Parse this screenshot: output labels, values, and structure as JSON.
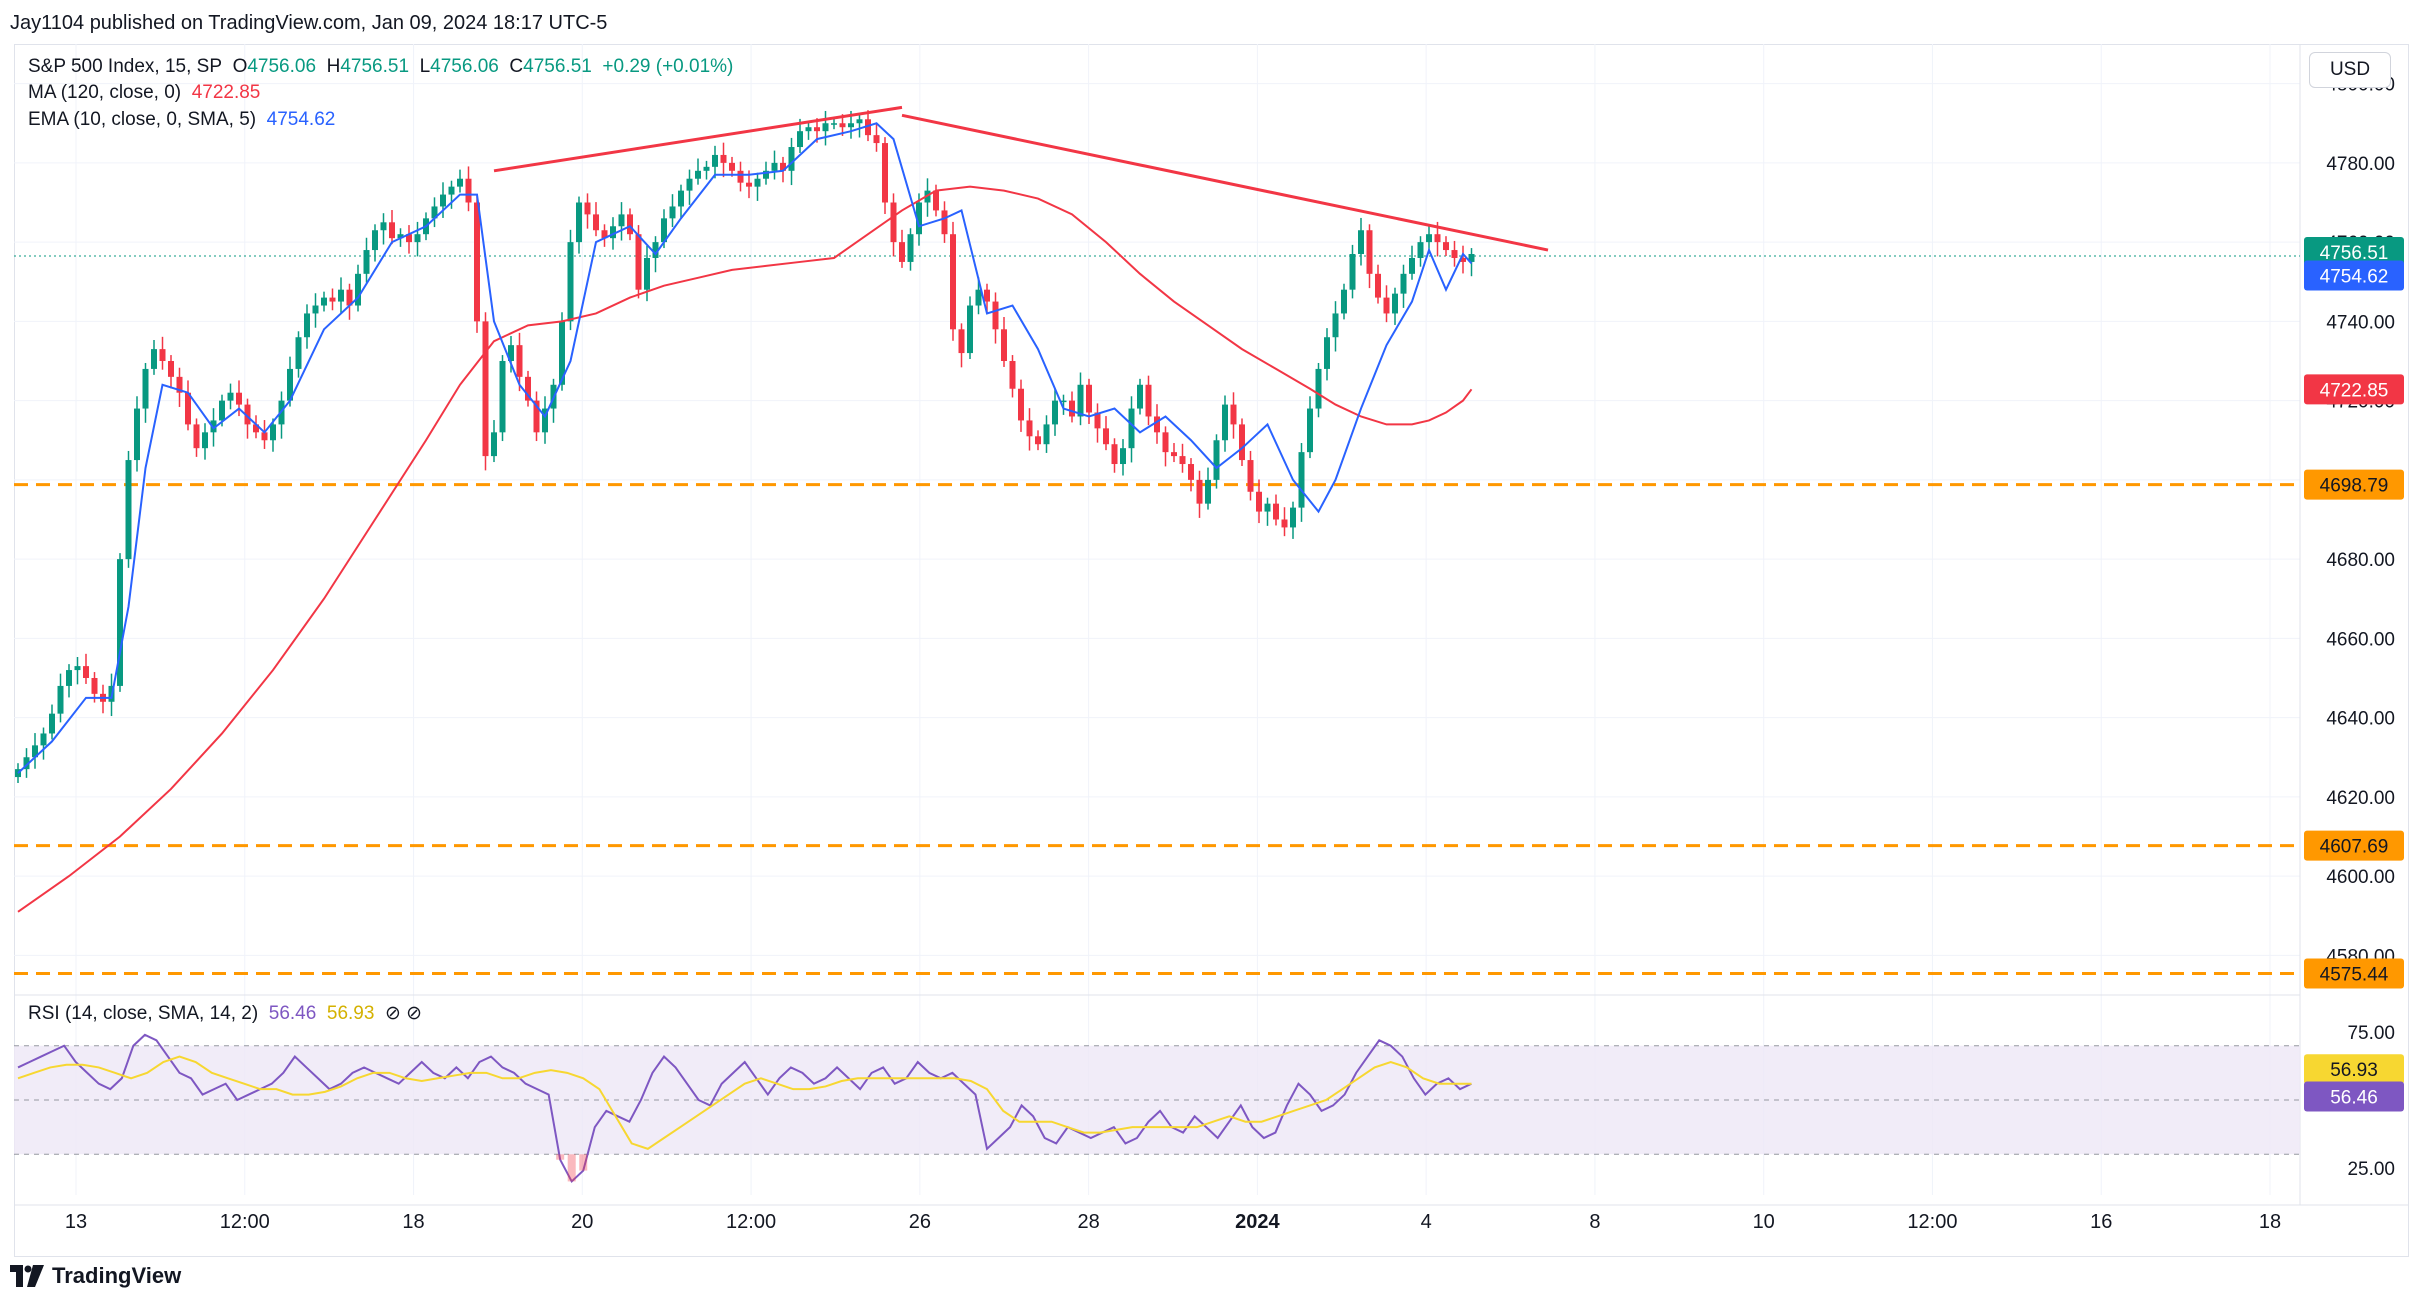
{
  "header": {
    "published": "Jay1104 published on TradingView.com, Jan 09, 2024 18:17 UTC-5"
  },
  "legend": {
    "symbol": "S&P 500 Index, 15, SP",
    "o_label": "O",
    "o_value": "4756.06",
    "h_label": "H",
    "h_value": "4756.51",
    "l_label": "L",
    "l_value": "4756.06",
    "c_label": "C",
    "c_value": "4756.51",
    "change": "+0.29 (+0.01%)",
    "ma_label": "MA (120, close, 0)",
    "ma_value": "4722.85",
    "ema_label": "EMA (10, close, 0, SMA, 5)",
    "ema_value": "4754.62",
    "rsi_label": "RSI (14, close, SMA, 14, 2)",
    "rsi_value": "56.46",
    "rsi_ma_value": "56.93",
    "rsi_icons": "⊘  ⊘"
  },
  "currency": "USD",
  "footer": {
    "brand": "TradingView",
    "logo_icon": "tradingview-logo-icon"
  },
  "colors": {
    "up": "#089981",
    "down": "#f23645",
    "ma": "#f23645",
    "ema": "#2962ff",
    "trend": "#f23645",
    "support": "#ff9800",
    "rsi": "#7e57c2",
    "rsi_ma": "#f7d731",
    "rsi_band": "#ede7f6",
    "grid": "#f0f3fa",
    "last_price": "#089981"
  },
  "chart_data": {
    "type": "candlestick",
    "title": "S&P 500 Index, 15, SP",
    "price_axis": {
      "ylim": [
        4570,
        4810
      ],
      "ticks": [
        4580,
        4600,
        4620,
        4640,
        4660,
        4680,
        4700,
        4720,
        4740,
        4760,
        4780,
        4800
      ],
      "tick_labels": [
        "4580.00",
        "4600.00",
        "4620.00",
        "4640.00",
        "4660.00",
        "4680.00",
        "4700.00",
        "4720.00",
        "4740.00",
        "4760.00",
        "4780.00",
        "4800.00"
      ]
    },
    "time_axis": {
      "labels": [
        "13",
        "12:00",
        "18",
        "20",
        "12:00",
        "26",
        "28",
        "2024",
        "4",
        "8",
        "10",
        "12:00",
        "16",
        "18"
      ],
      "bold_label": "2024"
    },
    "series": [
      {
        "name": "S&P 500 Index",
        "style": "candles",
        "closes": [
          4627,
          4630,
          4633,
          4636,
          4641,
          4648,
          4652,
          4653,
          4650,
          4646,
          4644,
          4648,
          4680,
          4705,
          4718,
          4728,
          4733,
          4730,
          4726,
          4722,
          4714,
          4708,
          4712,
          4715,
          4720,
          4722,
          4719,
          4714,
          4712,
          4710,
          4714,
          4720,
          4728,
          4736,
          4742,
          4744,
          4746,
          4745,
          4748,
          4744,
          4752,
          4758,
          4763,
          4765,
          4761,
          4762,
          4760,
          4762,
          4766,
          4769,
          4772,
          4774,
          4776,
          4770,
          4740,
          4706,
          4712,
          4730,
          4734,
          4726,
          4720,
          4712,
          4718,
          4724,
          4740,
          4760,
          4770,
          4767,
          4763,
          4761,
          4764,
          4767,
          4762,
          4748,
          4756,
          4760,
          4766,
          4769,
          4773,
          4776,
          4778,
          4779,
          4782,
          4780,
          4778,
          4775,
          4774,
          4776,
          4778,
          4780,
          4778,
          4784,
          4788,
          4789,
          4788,
          4790,
          4790,
          4789,
          4790,
          4791,
          4787,
          4785,
          4770,
          4760,
          4755,
          4762,
          4770,
          4773,
          4768,
          4762,
          4738,
          4732,
          4744,
          4748,
          4745,
          4738,
          4730,
          4723,
          4715,
          4711,
          4709,
          4714,
          4720,
          4720,
          4716,
          4724,
          4717,
          4713,
          4709,
          4704,
          4708,
          4718,
          4724,
          4716,
          4712,
          4707,
          4706,
          4704,
          4700,
          4694,
          4700,
          4710,
          4719,
          4714,
          4705,
          4697,
          4692,
          4694,
          4690,
          4688,
          4693,
          4707,
          4718,
          4728,
          4736,
          4742,
          4748,
          4757,
          4763,
          4752,
          4746,
          4742,
          4747,
          4752,
          4756,
          4760,
          4762,
          4760,
          4758,
          4756,
          4755,
          4757
        ],
        "last": 4756.51
      },
      {
        "name": "MA (120, close, 0)",
        "style": "line",
        "points": [
          [
            0,
            4591
          ],
          [
            6,
            4600
          ],
          [
            12,
            4610
          ],
          [
            18,
            4622
          ],
          [
            24,
            4636
          ],
          [
            30,
            4652
          ],
          [
            36,
            4670
          ],
          [
            42,
            4690
          ],
          [
            48,
            4710
          ],
          [
            52,
            4724
          ],
          [
            56,
            4735
          ],
          [
            60,
            4739
          ],
          [
            64,
            4740
          ],
          [
            68,
            4742
          ],
          [
            72,
            4746
          ],
          [
            76,
            4749
          ],
          [
            80,
            4751
          ],
          [
            84,
            4753
          ],
          [
            88,
            4754
          ],
          [
            92,
            4755
          ],
          [
            96,
            4756
          ],
          [
            100,
            4762
          ],
          [
            104,
            4768
          ],
          [
            108,
            4773
          ],
          [
            112,
            4774
          ],
          [
            116,
            4773
          ],
          [
            120,
            4771
          ],
          [
            124,
            4767
          ],
          [
            128,
            4760
          ],
          [
            132,
            4752
          ],
          [
            136,
            4745
          ],
          [
            140,
            4739
          ],
          [
            144,
            4733
          ],
          [
            148,
            4728
          ],
          [
            152,
            4723
          ],
          [
            155,
            4719
          ],
          [
            158,
            4716
          ],
          [
            161,
            4714
          ],
          [
            164,
            4714
          ],
          [
            166,
            4715
          ],
          [
            168,
            4717
          ],
          [
            170,
            4720
          ],
          [
            171,
            4722.85
          ]
        ],
        "last": 4722.85
      },
      {
        "name": "EMA (10, close, 0, SMA, 5)",
        "style": "line",
        "points": [
          [
            0,
            4626
          ],
          [
            4,
            4634
          ],
          [
            8,
            4645
          ],
          [
            11,
            4645
          ],
          [
            13,
            4668
          ],
          [
            15,
            4703
          ],
          [
            17,
            4724
          ],
          [
            20,
            4722
          ],
          [
            23,
            4713
          ],
          [
            26,
            4718
          ],
          [
            29,
            4712
          ],
          [
            32,
            4720
          ],
          [
            36,
            4738
          ],
          [
            40,
            4746
          ],
          [
            44,
            4760
          ],
          [
            48,
            4764
          ],
          [
            52,
            4772
          ],
          [
            54,
            4772
          ],
          [
            56,
            4740
          ],
          [
            59,
            4724
          ],
          [
            62,
            4716
          ],
          [
            65,
            4730
          ],
          [
            68,
            4760
          ],
          [
            72,
            4764
          ],
          [
            75,
            4757
          ],
          [
            78,
            4766
          ],
          [
            82,
            4777
          ],
          [
            86,
            4777
          ],
          [
            90,
            4778
          ],
          [
            94,
            4786
          ],
          [
            98,
            4788
          ],
          [
            101,
            4790
          ],
          [
            103,
            4786
          ],
          [
            106,
            4764
          ],
          [
            109,
            4766
          ],
          [
            111,
            4768
          ],
          [
            114,
            4742
          ],
          [
            117,
            4744
          ],
          [
            120,
            4733
          ],
          [
            123,
            4718
          ],
          [
            126,
            4716
          ],
          [
            129,
            4718
          ],
          [
            132,
            4712
          ],
          [
            135,
            4716
          ],
          [
            138,
            4710
          ],
          [
            141,
            4703
          ],
          [
            144,
            4708
          ],
          [
            147,
            4714
          ],
          [
            150,
            4700
          ],
          [
            153,
            4692
          ],
          [
            155,
            4700
          ],
          [
            158,
            4718
          ],
          [
            161,
            4734
          ],
          [
            164,
            4745
          ],
          [
            166,
            4758
          ],
          [
            168,
            4748
          ],
          [
            170,
            4757
          ],
          [
            171,
            4754.62
          ]
        ],
        "last": 4754.62
      },
      {
        "name": "RSI (14, close, SMA, 14, 2)",
        "style": "oscillator",
        "ylim": [
          15,
          85
        ],
        "ticks": [
          25,
          50,
          75
        ],
        "tick_labels": [
          "25.00",
          "50.00",
          "75.00"
        ],
        "band": [
          30,
          70
        ],
        "rsi": [
          62,
          64,
          66,
          68,
          70,
          64,
          60,
          56,
          54,
          58,
          70,
          74,
          72,
          66,
          60,
          58,
          52,
          54,
          56,
          50,
          52,
          54,
          56,
          60,
          66,
          62,
          58,
          54,
          56,
          60,
          62,
          60,
          58,
          56,
          60,
          64,
          60,
          58,
          62,
          58,
          64,
          66,
          62,
          60,
          56,
          54,
          52,
          28,
          20,
          24,
          40,
          46,
          44,
          42,
          50,
          60,
          66,
          62,
          56,
          50,
          48,
          56,
          60,
          64,
          58,
          52,
          58,
          62,
          60,
          56,
          58,
          62,
          58,
          54,
          60,
          62,
          56,
          58,
          64,
          60,
          58,
          60,
          56,
          52,
          32,
          36,
          40,
          48,
          44,
          36,
          34,
          40,
          38,
          36,
          38,
          40,
          34,
          36,
          42,
          46,
          40,
          38,
          44,
          40,
          36,
          42,
          48,
          40,
          36,
          38,
          48,
          56,
          52,
          46,
          48,
          52,
          60,
          66,
          72,
          70,
          66,
          58,
          52,
          56,
          58,
          54,
          56
        ],
        "rsi_ma": [
          58,
          60,
          62,
          63,
          63,
          62,
          60,
          58,
          60,
          64,
          66,
          64,
          60,
          58,
          56,
          54,
          54,
          52,
          52,
          53,
          55,
          58,
          60,
          60,
          58,
          57,
          58,
          59,
          60,
          60,
          58,
          58,
          60,
          61,
          60,
          58,
          54,
          44,
          34,
          32,
          36,
          40,
          44,
          48,
          52,
          56,
          58,
          56,
          54,
          54,
          55,
          57,
          58,
          58,
          58,
          58,
          58,
          58,
          58,
          57,
          54,
          46,
          42,
          42,
          42,
          40,
          38,
          38,
          39,
          40,
          40,
          40,
          40,
          40,
          42,
          44,
          42,
          42,
          44,
          46,
          48,
          50,
          54,
          58,
          62,
          64,
          62,
          58,
          56,
          56,
          56
        ],
        "last_rsi": 56.46,
        "last_rsi_ma": 56.93
      }
    ],
    "annotations": [
      {
        "type": "trendline",
        "from": [
          56,
          4778
        ],
        "to": [
          104,
          4794
        ]
      },
      {
        "type": "trendline",
        "from": [
          104,
          4792
        ],
        "to": [
          180,
          4758
        ]
      },
      {
        "type": "hline",
        "value": 4698.79,
        "label": "4698.79"
      },
      {
        "type": "hline",
        "value": 4607.69,
        "label": "4607.69"
      },
      {
        "type": "hline",
        "value": 4575.44,
        "label": "4575.44"
      }
    ],
    "price_labels": [
      {
        "value": 4756.51,
        "label": "4756.51",
        "color": "#089981"
      },
      {
        "value": 4754.62,
        "label": "4754.62",
        "color": "#2962ff"
      },
      {
        "value": 4722.85,
        "label": "4722.85",
        "color": "#f23645"
      },
      {
        "value": 4698.79,
        "label": "4698.79",
        "color": "#ff9800"
      },
      {
        "value": 4607.69,
        "label": "4607.69",
        "color": "#ff9800"
      },
      {
        "value": 4575.44,
        "label": "4575.44",
        "color": "#ff9800"
      }
    ],
    "rsi_labels": [
      {
        "value": 56.93,
        "label": "56.93",
        "color": "#f7d731"
      },
      {
        "value": 56.46,
        "label": "56.46",
        "color": "#7e57c2"
      }
    ],
    "grid": true
  }
}
